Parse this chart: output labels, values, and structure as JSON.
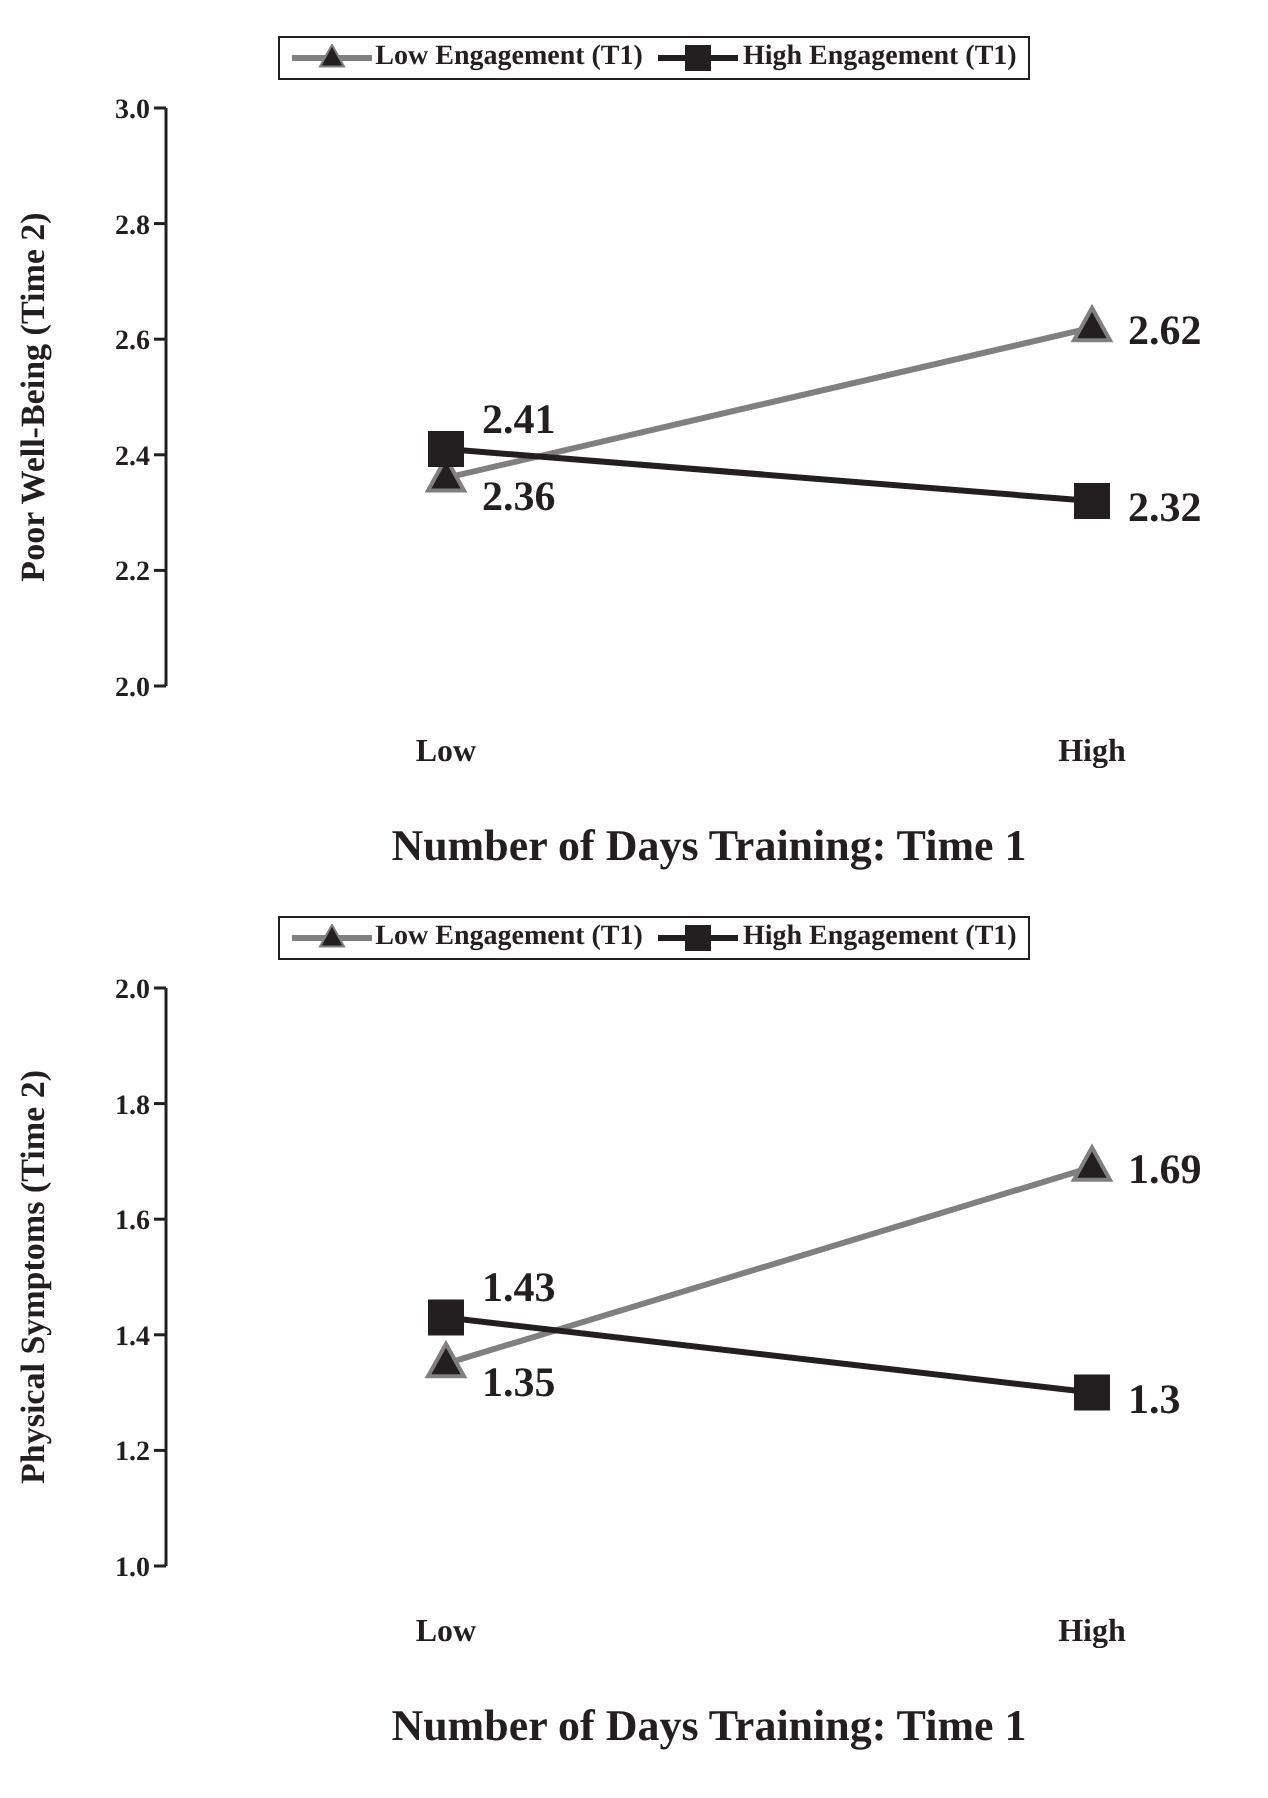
{
  "chart_data": [
    {
      "type": "line",
      "xlabel": "Number of Days Training:  Time 1",
      "ylabel": "Poor Well-Being (Time 2)",
      "categories": [
        "Low",
        "High"
      ],
      "series": [
        {
          "name": "Low Engagement (T1)",
          "color": "#808080",
          "values": [
            2.36,
            2.62
          ],
          "marker": "triangle"
        },
        {
          "name": "High Engagement (T1)",
          "color": "#231f20",
          "values": [
            2.41,
            2.32
          ],
          "marker": "square"
        }
      ],
      "ylim": [
        2.0,
        3.0
      ],
      "yticks": [
        {
          "value": 2.0,
          "label": "2.0"
        },
        {
          "value": 2.2,
          "label": "2.2"
        },
        {
          "value": 2.4,
          "label": "2.4"
        },
        {
          "value": 2.6,
          "label": "2.6"
        },
        {
          "value": 2.8,
          "label": "2.8"
        },
        {
          "value": 3.0,
          "label": "3.0"
        }
      ],
      "data_labels": true,
      "legend": "top",
      "grid": false
    },
    {
      "type": "line",
      "xlabel": "Number of Days Training:  Time 1",
      "ylabel": "Physical Symptoms (Time 2)",
      "categories": [
        "Low",
        "High"
      ],
      "series": [
        {
          "name": "Low Engagement (T1)",
          "color": "#808080",
          "values": [
            1.35,
            1.69
          ],
          "marker": "triangle"
        },
        {
          "name": "High Engagement (T1)",
          "color": "#231f20",
          "values": [
            1.43,
            1.3
          ],
          "marker": "square"
        }
      ],
      "ylim": [
        1.0,
        2.0
      ],
      "yticks": [
        {
          "value": 1.0,
          "label": "1.0"
        },
        {
          "value": 1.2,
          "label": "1.2"
        },
        {
          "value": 1.4,
          "label": "1.4"
        },
        {
          "value": 1.6,
          "label": "1.6"
        },
        {
          "value": 1.8,
          "label": "1.8"
        },
        {
          "value": 2.0,
          "label": "2.0"
        }
      ],
      "data_labels": true,
      "legend": "top",
      "grid": false
    }
  ]
}
